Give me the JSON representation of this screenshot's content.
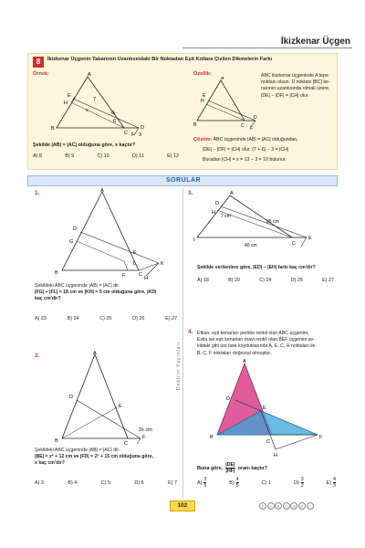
{
  "header": {
    "title": "İkizkenar Üçgen"
  },
  "topic": {
    "number": "8",
    "title": "İkizkenar Üçgenin Tabanının Uzantısındaki Bir Noktadan Eşit Kollara Çizilen Dikmelerin Farkı",
    "example_label": "Örnek:",
    "property_label": "Özellik:",
    "property_lines": [
      "ABC ikizkenar üçgeninde A tepe",
      "noktası olsun. D noktası [BC] ke-",
      "narının uzantısında olmak üzere,",
      "|DE| − |DF| = |CH| olur."
    ],
    "example_question": "Şekilde |AB| = |AC| olduğuna göre, x kaçtır?",
    "example_options": [
      "A) 8",
      "B) 9",
      "C) 10",
      "D) 11",
      "E) 12"
    ],
    "solution_label": "Çözüm:",
    "solution_lines": [
      "ABC üçgeninde |AB| = |AC| olduğundan,",
      "|DE| − |DF| = |CH| olur. (7 + 6) − 3 = |CH|",
      "Buradan |CH| = x = 13 − 3 = 10 bulunur."
    ],
    "example_figure_labels": {
      "A": "A",
      "E": "E",
      "H": "H",
      "seven": "7",
      "x": "x",
      "G": "G",
      "six": "6",
      "B": "B",
      "C": "C",
      "D": "D",
      "F": "F",
      "three": "3"
    },
    "property_figure_labels": {
      "A": "A",
      "H": "H",
      "E": "E",
      "B": "B",
      "C": "C",
      "D": "D",
      "F": "F"
    }
  },
  "sorular": "SORULAR",
  "questions": [
    {
      "number": "1.",
      "lines": [
        "Şekildeki ABC üçgeninde |AB| = |AC| dir.",
        "|FG| + |FL| = 18 cm ve |KH| = 5 cm olduğuna göre, |KD|",
        "kaç cm'dir?"
      ],
      "options": [
        "A) 23",
        "B) 24",
        "C) 25",
        "D) 26",
        "E) 27"
      ],
      "figure": {
        "A": "A",
        "D": "D",
        "G": "G",
        "E": "E",
        "B": "B",
        "F": "F",
        "L": "L",
        "C": "C",
        "H": "H",
        "K": "K"
      }
    },
    {
      "number": "2.",
      "lines": [
        "Şekildeki ABC üçgeninde |AB| = |AC| dir.",
        "|BE| = x² + 12 cm  ve  |FD| = 2ˣ + 15 cm olduğuna göre,",
        "x kaç cm'dir?"
      ],
      "options": [
        "A) 3",
        "B) 4",
        "C) 5",
        "D) 6",
        "E) 7"
      ],
      "figure": {
        "A": "A",
        "D": "D",
        "E": "E",
        "B": "B",
        "C": "C",
        "F": "F",
        "len": "2x cm"
      }
    },
    {
      "number": "3.",
      "lines": [
        "Şekilde verilenlere göre, |ED| − |EH| farkı kaç cm'dir?"
      ],
      "options": [
        "A) 18",
        "B) 20",
        "C) 24",
        "D) 25",
        "E) 27"
      ],
      "figure": {
        "A": "A",
        "B": "B",
        "D": "D",
        "H": "H",
        "C": "C",
        "E": "E",
        "seven": "7 cm",
        "twentyfive": "25 cm",
        "forty": "40 cm"
      }
    },
    {
      "number": "4.",
      "lines": [
        "Efkan, eşit kenarları pembe renkli olan ABC üçgenini,",
        "Esila ise eşit kenarları mavi renkli olan BEF üçgenini şe-",
        "kildeki gibi üst üste koyduklarında A, E, C, H noktaları ile",
        "B, C, F noktaları doğrusal olmuştur."
      ],
      "prompt_prefix": "Buna göre,",
      "prompt_num": "|DE|",
      "prompt_den": "|HF|",
      "prompt_suffix": "oranı kaçtır?",
      "option_letters": [
        "A)",
        "B)",
        "C)",
        "D)",
        "E)"
      ],
      "option_num": [
        "3",
        "4",
        "",
        "3",
        "4"
      ],
      "option_den": [
        "5",
        "5",
        "",
        "2",
        "3"
      ],
      "option_whole": [
        "",
        "",
        "1",
        "",
        ""
      ],
      "figure": {
        "A": "A",
        "D": "D",
        "E": "E",
        "B": "B",
        "C": "C",
        "H": "H",
        "F": "F"
      },
      "colors": {
        "pink": "#d9418a",
        "blue": "#3aa6d8"
      }
    }
  ],
  "side_brand": "Doktrin Yayınları",
  "page_number": "102",
  "answer_key": [
    "1",
    "A",
    "B",
    "C",
    "D",
    "E",
    "C"
  ]
}
